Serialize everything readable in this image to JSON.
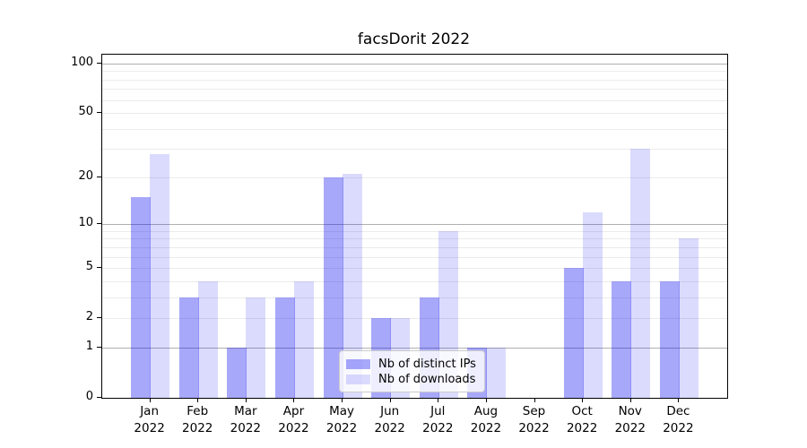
{
  "chart_data": {
    "type": "bar",
    "title": "facsDorit 2022",
    "months": [
      "Jan",
      "Feb",
      "Mar",
      "Apr",
      "May",
      "Jun",
      "Jul",
      "Aug",
      "Sep",
      "Oct",
      "Nov",
      "Dec"
    ],
    "year": "2022",
    "series": [
      {
        "key": "distinct-ips",
        "name": "Nb of distinct IPs",
        "color": "#0000f0",
        "alpha": 0.34,
        "values": [
          15,
          3,
          1,
          3,
          20,
          2,
          3,
          1,
          0,
          5,
          4,
          4
        ]
      },
      {
        "key": "downloads",
        "name": "Nb of downloads",
        "color": "#0000f0",
        "alpha": 0.14,
        "values": [
          28,
          4,
          3,
          4,
          21,
          2,
          9,
          1,
          0,
          12,
          30,
          8
        ]
      }
    ],
    "y_axis": {
      "scale": "log10(1+x)",
      "ticks": [
        0,
        1,
        2,
        5,
        10,
        20,
        50,
        100
      ],
      "major_gridlines": [
        1,
        10,
        100
      ],
      "minor_gridlines": [
        2,
        3,
        4,
        5,
        6,
        7,
        8,
        9,
        20,
        30,
        40,
        50,
        60,
        70,
        80,
        90
      ],
      "max_value_headroom": 113
    },
    "grid": true,
    "legend_position": "lower-center-inside",
    "colors": {
      "major_grid": "#b0b0b0",
      "minor_grid": "#ebebeb",
      "axis": "#000000",
      "bar_dark_on_white": "#a8a8fa",
      "bar_light_on_white": "#dedefb"
    }
  }
}
